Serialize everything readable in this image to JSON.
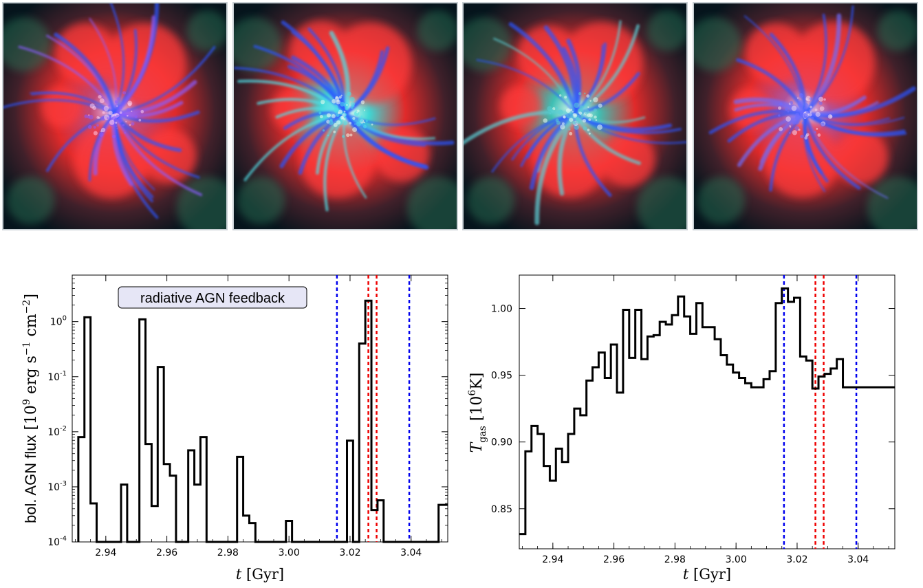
{
  "image_panels": [
    {
      "index": 1,
      "tint": "#c04a7a",
      "filament": "#8a5cff",
      "core": "#ffd0f0"
    },
    {
      "index": 2,
      "tint": "#3fd7d4",
      "filament": "#4fe0e8",
      "core": "#f4fff0"
    },
    {
      "index": 3,
      "tint": "#3fbfb4",
      "filament": "#5ccfd6",
      "core": "#f0fff4"
    },
    {
      "index": 4,
      "tint": "#b0529a",
      "filament": "#6c6cff",
      "core": "#f6d8f0"
    }
  ],
  "colors": {
    "blue_line": "#0000ee",
    "red_line": "#ee0000",
    "step_line": "#000000",
    "label_box": "#e6e6f6"
  },
  "chart_data": [
    {
      "type": "line",
      "style": "step",
      "annotation": "radiative AGN feedback",
      "ylabel_text": "bol. AGN flux",
      "ylabel_unit_pre": "10",
      "ylabel_unit_exp": "9",
      "ylabel_unit_mid": "erg s",
      "ylabel_unit_exp2": "−1",
      "ylabel_unit_mid2": "cm",
      "ylabel_unit_exp3": "−2",
      "xlabel_var": "t",
      "xlabel_unit": "[Gyr]",
      "yscale": "log",
      "xlim": [
        2.929,
        3.052
      ],
      "ylim": [
        0.0001,
        7.0
      ],
      "xticks": [
        "2.94",
        "2.96",
        "2.98",
        "3.00",
        "3.02",
        "3.04"
      ],
      "xtick_values": [
        2.94,
        2.96,
        2.98,
        3.0,
        3.02,
        3.04
      ],
      "yticks": [
        {
          "base": "10",
          "exp": "0",
          "value": 1
        },
        {
          "base": "10",
          "exp": "-1",
          "value": 0.1
        },
        {
          "base": "10",
          "exp": "-2",
          "value": 0.01
        },
        {
          "base": "10",
          "exp": "-3",
          "value": 0.001
        },
        {
          "base": "10",
          "exp": "-4",
          "value": 0.0001
        }
      ],
      "bin_width": 0.002,
      "bin_starts": [
        2.931,
        2.933,
        2.935,
        2.937,
        2.939,
        2.941,
        2.943,
        2.945,
        2.947,
        2.949,
        2.951,
        2.953,
        2.955,
        2.957,
        2.959,
        2.961,
        2.963,
        2.965,
        2.967,
        2.969,
        2.971,
        2.973,
        2.975,
        2.977,
        2.979,
        2.981,
        2.983,
        2.985,
        2.987,
        2.989,
        2.991,
        2.993,
        2.995,
        2.997,
        2.999,
        3.001,
        3.003,
        3.005,
        3.007,
        3.009,
        3.011,
        3.013,
        3.015,
        3.017,
        3.019,
        3.021,
        3.023,
        3.025,
        3.027,
        3.029,
        3.031,
        3.033,
        3.035,
        3.037,
        3.039,
        3.041,
        3.043,
        3.045,
        3.047,
        3.049,
        3.051
      ],
      "values": [
        0.008,
        1.2,
        0.0005,
        0.0001,
        0.0001,
        0.0001,
        0.0001,
        0.0011,
        0.0001,
        0.0001,
        1.1,
        0.006,
        0.00045,
        0.15,
        0.0026,
        0.0016,
        0.0001,
        0.0001,
        0.0046,
        0.0011,
        0.008,
        0.0001,
        0.0001,
        0.0001,
        0.0001,
        0.0001,
        0.0035,
        0.0003,
        0.00022,
        0.0001,
        0.0001,
        0.0001,
        0.0001,
        0.0001,
        0.00024,
        0.0001,
        0.0001,
        0.0001,
        0.0001,
        0.0001,
        0.0001,
        0.0001,
        0.0001,
        0.0001,
        0.0069,
        0.0001,
        0.4,
        2.4,
        0.00038,
        0.00057,
        0.0001,
        0.0001,
        0.0001,
        0.0001,
        0.0001,
        0.0001,
        0.0001,
        0.0001,
        0.0001,
        0.00047,
        0.00047
      ],
      "vlines": [
        {
          "x": 3.0157,
          "color": "blue"
        },
        {
          "x": 3.026,
          "color": "red"
        },
        {
          "x": 3.0287,
          "color": "red"
        },
        {
          "x": 3.0394,
          "color": "blue"
        }
      ]
    },
    {
      "type": "line",
      "style": "step",
      "ylabel_var": "T",
      "ylabel_sub": "gas",
      "ylabel_unit_pre": "[10",
      "ylabel_unit_exp": "6",
      "ylabel_unit_post": "K]",
      "xlabel_var": "t",
      "xlabel_unit": "[Gyr]",
      "yscale": "linear",
      "xlim": [
        2.929,
        3.052
      ],
      "ylim": [
        0.82,
        1.025
      ],
      "xticks": [
        "2.94",
        "2.96",
        "2.98",
        "3.00",
        "3.02",
        "3.04"
      ],
      "xtick_values": [
        2.94,
        2.96,
        2.98,
        3.0,
        3.02,
        3.04
      ],
      "yticks": [
        "1.00",
        "0.95",
        "0.90",
        "0.85"
      ],
      "ytick_values": [
        1.0,
        0.95,
        0.9,
        0.85
      ],
      "bin_width": 0.002,
      "bin_starts": [
        2.929,
        2.931,
        2.933,
        2.935,
        2.937,
        2.939,
        2.941,
        2.943,
        2.945,
        2.947,
        2.949,
        2.951,
        2.953,
        2.955,
        2.957,
        2.959,
        2.961,
        2.963,
        2.965,
        2.967,
        2.969,
        2.971,
        2.973,
        2.975,
        2.977,
        2.979,
        2.981,
        2.983,
        2.985,
        2.987,
        2.989,
        2.991,
        2.993,
        2.995,
        2.997,
        2.999,
        3.001,
        3.003,
        3.005,
        3.007,
        3.009,
        3.011,
        3.013,
        3.015,
        3.017,
        3.019,
        3.021,
        3.023,
        3.025,
        3.027,
        3.029,
        3.031,
        3.033,
        3.035,
        3.037,
        3.039,
        3.041,
        3.043,
        3.045,
        3.047,
        3.049,
        3.051
      ],
      "values": [
        0.831,
        0.893,
        0.912,
        0.906,
        0.882,
        0.871,
        0.895,
        0.885,
        0.906,
        0.925,
        0.92,
        0.946,
        0.956,
        0.967,
        0.948,
        0.973,
        0.937,
        0.999,
        0.963,
        0.999,
        0.962,
        0.979,
        0.98,
        0.99,
        0.988,
        0.995,
        1.009,
        0.994,
        0.981,
        1.004,
        0.986,
        0.986,
        0.977,
        0.965,
        0.958,
        0.952,
        0.948,
        0.944,
        0.941,
        0.941,
        0.947,
        0.953,
        1.004,
        1.015,
        1.005,
        1.008,
        0.964,
        0.961,
        0.94,
        0.949,
        0.951,
        0.955,
        0.962,
        0.941,
        0.941,
        0.941,
        0.941,
        0.941,
        0.941,
        0.941,
        0.941,
        0.941
      ],
      "vlines": [
        {
          "x": 3.0157,
          "color": "blue"
        },
        {
          "x": 3.026,
          "color": "red"
        },
        {
          "x": 3.0287,
          "color": "red"
        },
        {
          "x": 3.0394,
          "color": "blue"
        }
      ]
    }
  ]
}
